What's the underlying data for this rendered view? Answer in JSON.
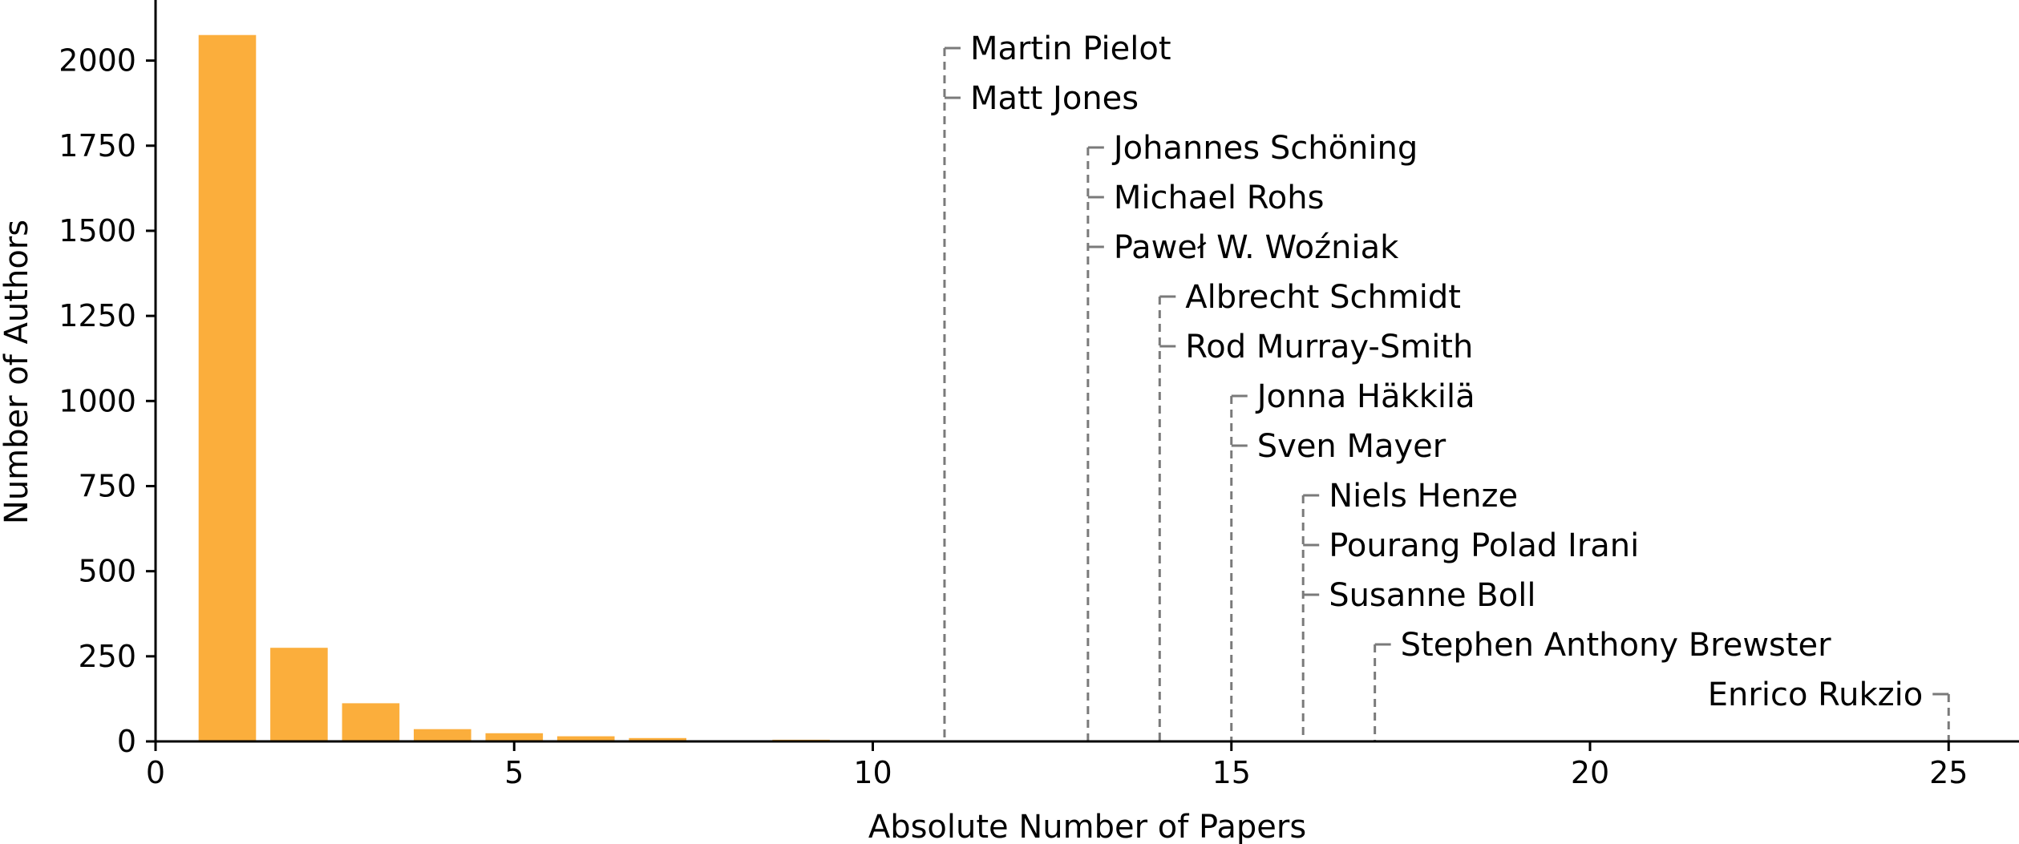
{
  "chart_data": {
    "type": "bar",
    "title": "",
    "xlabel": "Absolute Number of Papers",
    "ylabel": "Number of Authors",
    "xlim": [
      0,
      26
    ],
    "ylim": [
      0,
      2150
    ],
    "xticks": [
      0,
      5,
      10,
      15,
      20,
      25
    ],
    "yticks": [
      0,
      250,
      500,
      750,
      1000,
      1250,
      1500,
      1750,
      2000
    ],
    "bar_color": "#FBAE3C",
    "annotation_color": "#7A7A7A",
    "grid": false,
    "bars": [
      {
        "x": 1,
        "y": 2075
      },
      {
        "x": 2,
        "y": 275
      },
      {
        "x": 3,
        "y": 112
      },
      {
        "x": 4,
        "y": 36
      },
      {
        "x": 5,
        "y": 24
      },
      {
        "x": 6,
        "y": 15
      },
      {
        "x": 7,
        "y": 10
      },
      {
        "x": 8,
        "y": 2
      },
      {
        "x": 9,
        "y": 5
      },
      {
        "x": 10,
        "y": 1
      }
    ],
    "annotations": [
      {
        "x": 11,
        "names": [
          "Martin Pielot",
          "Matt Jones"
        ],
        "side": "right"
      },
      {
        "x": 13,
        "names": [
          "Johannes Schöning",
          "Michael Rohs",
          "Paweł W. Woźniak"
        ],
        "side": "right"
      },
      {
        "x": 14,
        "names": [
          "Albrecht Schmidt",
          "Rod Murray-Smith"
        ],
        "side": "right"
      },
      {
        "x": 15,
        "names": [
          "Jonna Häkkilä",
          "Sven Mayer"
        ],
        "side": "right"
      },
      {
        "x": 16,
        "names": [
          "Niels Henze",
          "Pourang Polad Irani",
          "Susanne Boll"
        ],
        "side": "right"
      },
      {
        "x": 17,
        "names": [
          "Stephen Anthony Brewster"
        ],
        "side": "right"
      },
      {
        "x": 25,
        "names": [
          "Enrico Rukzio"
        ],
        "side": "left"
      }
    ]
  }
}
